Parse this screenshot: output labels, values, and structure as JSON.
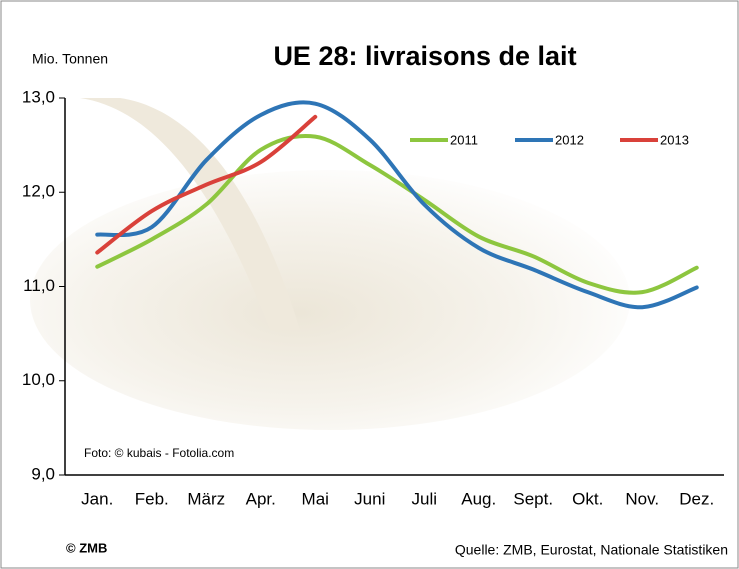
{
  "chart_data": {
    "type": "line",
    "title": "UE 28: livraisons de lait",
    "y_label": "Mio. Tonnen",
    "photo_credit": "Foto: © kubais - Fotolia.com",
    "copyright": "© ZMB",
    "source": "Quelle: ZMB, Eurostat,  Nationale Statistiken",
    "categories": [
      "Jan.",
      "Feb.",
      "März",
      "Apr.",
      "Mai",
      "Juni",
      "Juli",
      "Aug.",
      "Sept.",
      "Okt.",
      "Nov.",
      "Dez."
    ],
    "series": [
      {
        "name": "2011",
        "color": "#8dc63f",
        "values": [
          11.21,
          11.5,
          11.87,
          12.45,
          12.59,
          12.29,
          11.92,
          11.53,
          11.32,
          11.04,
          10.94,
          11.2
        ]
      },
      {
        "name": "2012",
        "color": "#2e75b6",
        "values": [
          11.55,
          11.63,
          12.34,
          12.82,
          12.94,
          12.56,
          11.87,
          11.41,
          11.18,
          10.94,
          10.78,
          10.99
        ]
      },
      {
        "name": "2013",
        "color": "#d9413a",
        "values": [
          11.36,
          11.8,
          12.08,
          12.32,
          12.8,
          null,
          null,
          null,
          null,
          null,
          null,
          null
        ]
      }
    ],
    "ylim": [
      9,
      13
    ],
    "yticks": [
      {
        "value": 9,
        "label": "9,0"
      },
      {
        "value": 10,
        "label": "10,0"
      },
      {
        "value": 11,
        "label": "11,0"
      },
      {
        "value": 12,
        "label": "12,0"
      },
      {
        "value": 13,
        "label": "13,0"
      }
    ],
    "grid": false,
    "legend": "top-right"
  }
}
